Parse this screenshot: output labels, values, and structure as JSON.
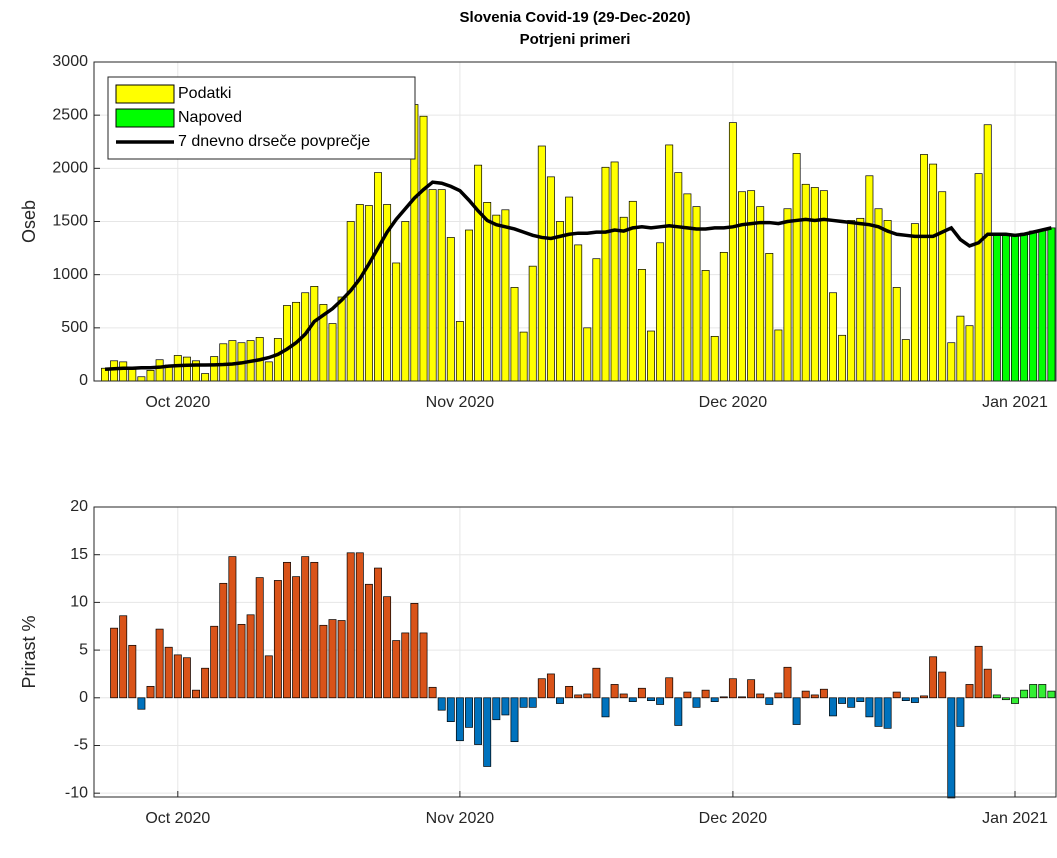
{
  "chart_data": [
    {
      "type": "bar",
      "title": "Slovenia Covid-19 (29-Dec-2020)",
      "subtitle": "Potrjeni primeri",
      "y_label": "Oseb",
      "categories": [
        null,
        null,
        null,
        null,
        null,
        null,
        null,
        null,
        "Oct 2020",
        null,
        null,
        null,
        null,
        null,
        null,
        null,
        null,
        null,
        null,
        null,
        null,
        null,
        null,
        null,
        null,
        null,
        null,
        null,
        null,
        null,
        null,
        null,
        null,
        null,
        null,
        null,
        null,
        null,
        null,
        "Nov 2020",
        null,
        null,
        null,
        null,
        null,
        null,
        null,
        null,
        null,
        null,
        null,
        null,
        null,
        null,
        null,
        null,
        null,
        null,
        null,
        null,
        null,
        null,
        null,
        null,
        null,
        null,
        null,
        null,
        null,
        "Dec 2020",
        null,
        null,
        null,
        null,
        null,
        null,
        null,
        null,
        null,
        null,
        null,
        null,
        null,
        null,
        null,
        null,
        null,
        null,
        null,
        null,
        null,
        null,
        null,
        null,
        null,
        null,
        null,
        null,
        null,
        null,
        "Jan 2021",
        null,
        null,
        null,
        null
      ],
      "ylim": [
        0,
        3000
      ],
      "yticks": [
        0,
        500,
        1000,
        1500,
        2000,
        2500,
        3000
      ],
      "grid": true,
      "legend": "top-left",
      "series": [
        {
          "name": "Podatki",
          "color": "#ffff00",
          "values": [
            120,
            190,
            180,
            110,
            40,
            100,
            200,
            150,
            240,
            225,
            190,
            70,
            230,
            350,
            380,
            360,
            380,
            410,
            180,
            400,
            710,
            740,
            830,
            890,
            720,
            540,
            790,
            1500,
            1660,
            1650,
            1960,
            1660,
            1110,
            1500,
            2600,
            2490,
            1800,
            1800,
            1350,
            560,
            1420,
            2030,
            1680,
            1560,
            1610,
            880,
            460,
            1080,
            2210,
            1920,
            1500,
            1730,
            1280,
            500,
            1150,
            2010,
            2060,
            1540,
            1690,
            1050,
            470,
            1300,
            2220,
            1960,
            1760,
            1640,
            1040,
            420,
            1210,
            2430,
            1780,
            1790,
            1640,
            1200,
            480,
            1620,
            2140,
            1850,
            1820,
            1790,
            830,
            430,
            1510,
            1530,
            1930,
            1620,
            1510,
            880,
            390,
            1480,
            2130,
            2040,
            1780,
            360,
            610,
            520,
            1950,
            2410,
            null,
            null,
            null,
            null,
            null,
            null,
            null
          ]
        },
        {
          "name": "Napoved",
          "color": "#00ff00",
          "values": [
            null,
            null,
            null,
            null,
            null,
            null,
            null,
            null,
            null,
            null,
            null,
            null,
            null,
            null,
            null,
            null,
            null,
            null,
            null,
            null,
            null,
            null,
            null,
            null,
            null,
            null,
            null,
            null,
            null,
            null,
            null,
            null,
            null,
            null,
            null,
            null,
            null,
            null,
            null,
            null,
            null,
            null,
            null,
            null,
            null,
            null,
            null,
            null,
            null,
            null,
            null,
            null,
            null,
            null,
            null,
            null,
            null,
            null,
            null,
            null,
            null,
            null,
            null,
            null,
            null,
            null,
            null,
            null,
            null,
            null,
            null,
            null,
            null,
            null,
            null,
            null,
            null,
            null,
            null,
            null,
            null,
            null,
            null,
            null,
            null,
            null,
            null,
            null,
            null,
            null,
            null,
            null,
            null,
            null,
            null,
            null,
            null,
            null,
            1380,
            1380,
            1370,
            1390,
            1410,
            1420,
            1440
          ]
        },
        {
          "name": "7 dnevno drseče povprečje",
          "type": "line",
          "color": "#000000",
          "values": [
            110,
            115,
            120,
            120,
            125,
            125,
            130,
            140,
            145,
            148,
            150,
            150,
            152,
            155,
            160,
            170,
            185,
            200,
            220,
            250,
            300,
            360,
            440,
            560,
            620,
            680,
            760,
            850,
            960,
            1100,
            1250,
            1400,
            1520,
            1620,
            1720,
            1800,
            1870,
            1860,
            1830,
            1790,
            1700,
            1600,
            1510,
            1470,
            1450,
            1430,
            1400,
            1370,
            1350,
            1340,
            1360,
            1380,
            1390,
            1390,
            1400,
            1400,
            1420,
            1410,
            1440,
            1450,
            1440,
            1450,
            1460,
            1450,
            1440,
            1430,
            1430,
            1440,
            1440,
            1450,
            1470,
            1480,
            1490,
            1490,
            1480,
            1500,
            1510,
            1520,
            1510,
            1520,
            1510,
            1500,
            1490,
            1480,
            1470,
            1450,
            1410,
            1380,
            1370,
            1360,
            1360,
            1360,
            1400,
            1440,
            1330,
            1270,
            1300,
            1380,
            1380,
            1380,
            1370,
            1380,
            1400,
            1420,
            1440
          ]
        }
      ]
    },
    {
      "type": "bar",
      "y_label": "Prirast %",
      "categories": [
        null,
        null,
        null,
        null,
        null,
        null,
        null,
        null,
        "Oct 2020",
        null,
        null,
        null,
        null,
        null,
        null,
        null,
        null,
        null,
        null,
        null,
        null,
        null,
        null,
        null,
        null,
        null,
        null,
        null,
        null,
        null,
        null,
        null,
        null,
        null,
        null,
        null,
        null,
        null,
        null,
        "Nov 2020",
        null,
        null,
        null,
        null,
        null,
        null,
        null,
        null,
        null,
        null,
        null,
        null,
        null,
        null,
        null,
        null,
        null,
        null,
        null,
        null,
        null,
        null,
        null,
        null,
        null,
        null,
        null,
        null,
        null,
        "Dec 2020",
        null,
        null,
        null,
        null,
        null,
        null,
        null,
        null,
        null,
        null,
        null,
        null,
        null,
        null,
        null,
        null,
        null,
        null,
        null,
        null,
        null,
        null,
        null,
        null,
        null,
        null,
        null,
        null,
        null,
        null,
        "Jan 2021",
        null,
        null,
        null,
        null
      ],
      "ylim": [
        -10.4,
        20
      ],
      "yticks": [
        -10,
        -5,
        0,
        5,
        10,
        15,
        20
      ],
      "grid": true,
      "series": [
        {
          "color": "#d95319",
          "negative_color": "#0072bd",
          "values": [
            null,
            7.3,
            8.6,
            5.5,
            -1.2,
            1.2,
            7.2,
            5.3,
            4.5,
            4.2,
            0.8,
            3.1,
            7.5,
            12.0,
            14.8,
            7.7,
            8.7,
            12.6,
            4.4,
            12.3,
            14.2,
            12.7,
            14.8,
            14.2,
            7.6,
            8.2,
            8.1,
            15.2,
            15.2,
            11.9,
            13.6,
            10.6,
            6.0,
            6.8,
            9.9,
            6.8,
            1.1,
            -1.3,
            -2.5,
            -4.5,
            -3.1,
            -4.9,
            -7.2,
            -2.3,
            -1.8,
            -4.6,
            -1.0,
            -1.0,
            2.0,
            2.5,
            -0.6,
            1.2,
            0.3,
            0.4,
            3.1,
            -2.0,
            1.4,
            0.4,
            -0.4,
            1.0,
            -0.3,
            -0.7,
            2.1,
            -2.9,
            0.6,
            -1.0,
            0.8,
            -0.4,
            0.1,
            2.0,
            0.1,
            1.9,
            0.4,
            -0.7,
            0.5,
            3.2,
            -2.8,
            0.7,
            0.3,
            0.9,
            -1.9,
            -0.6,
            -1.0,
            -0.4,
            -2.0,
            -3.0,
            -3.2,
            0.6,
            -0.3,
            -0.5,
            0.2,
            4.3,
            2.7,
            -10.5,
            -3.0,
            1.4,
            5.4,
            3.0,
            null,
            null,
            null,
            null,
            null,
            null,
            null
          ]
        },
        {
          "color": "#33ee33",
          "values": [
            null,
            null,
            null,
            null,
            null,
            null,
            null,
            null,
            null,
            null,
            null,
            null,
            null,
            null,
            null,
            null,
            null,
            null,
            null,
            null,
            null,
            null,
            null,
            null,
            null,
            null,
            null,
            null,
            null,
            null,
            null,
            null,
            null,
            null,
            null,
            null,
            null,
            null,
            null,
            null,
            null,
            null,
            null,
            null,
            null,
            null,
            null,
            null,
            null,
            null,
            null,
            null,
            null,
            null,
            null,
            null,
            null,
            null,
            null,
            null,
            null,
            null,
            null,
            null,
            null,
            null,
            null,
            null,
            null,
            null,
            null,
            null,
            null,
            null,
            null,
            null,
            null,
            null,
            null,
            null,
            null,
            null,
            null,
            null,
            null,
            null,
            null,
            null,
            null,
            null,
            null,
            null,
            null,
            null,
            null,
            null,
            null,
            null,
            0.3,
            -0.2,
            -0.6,
            0.8,
            1.4,
            1.4,
            0.7
          ]
        }
      ]
    }
  ]
}
